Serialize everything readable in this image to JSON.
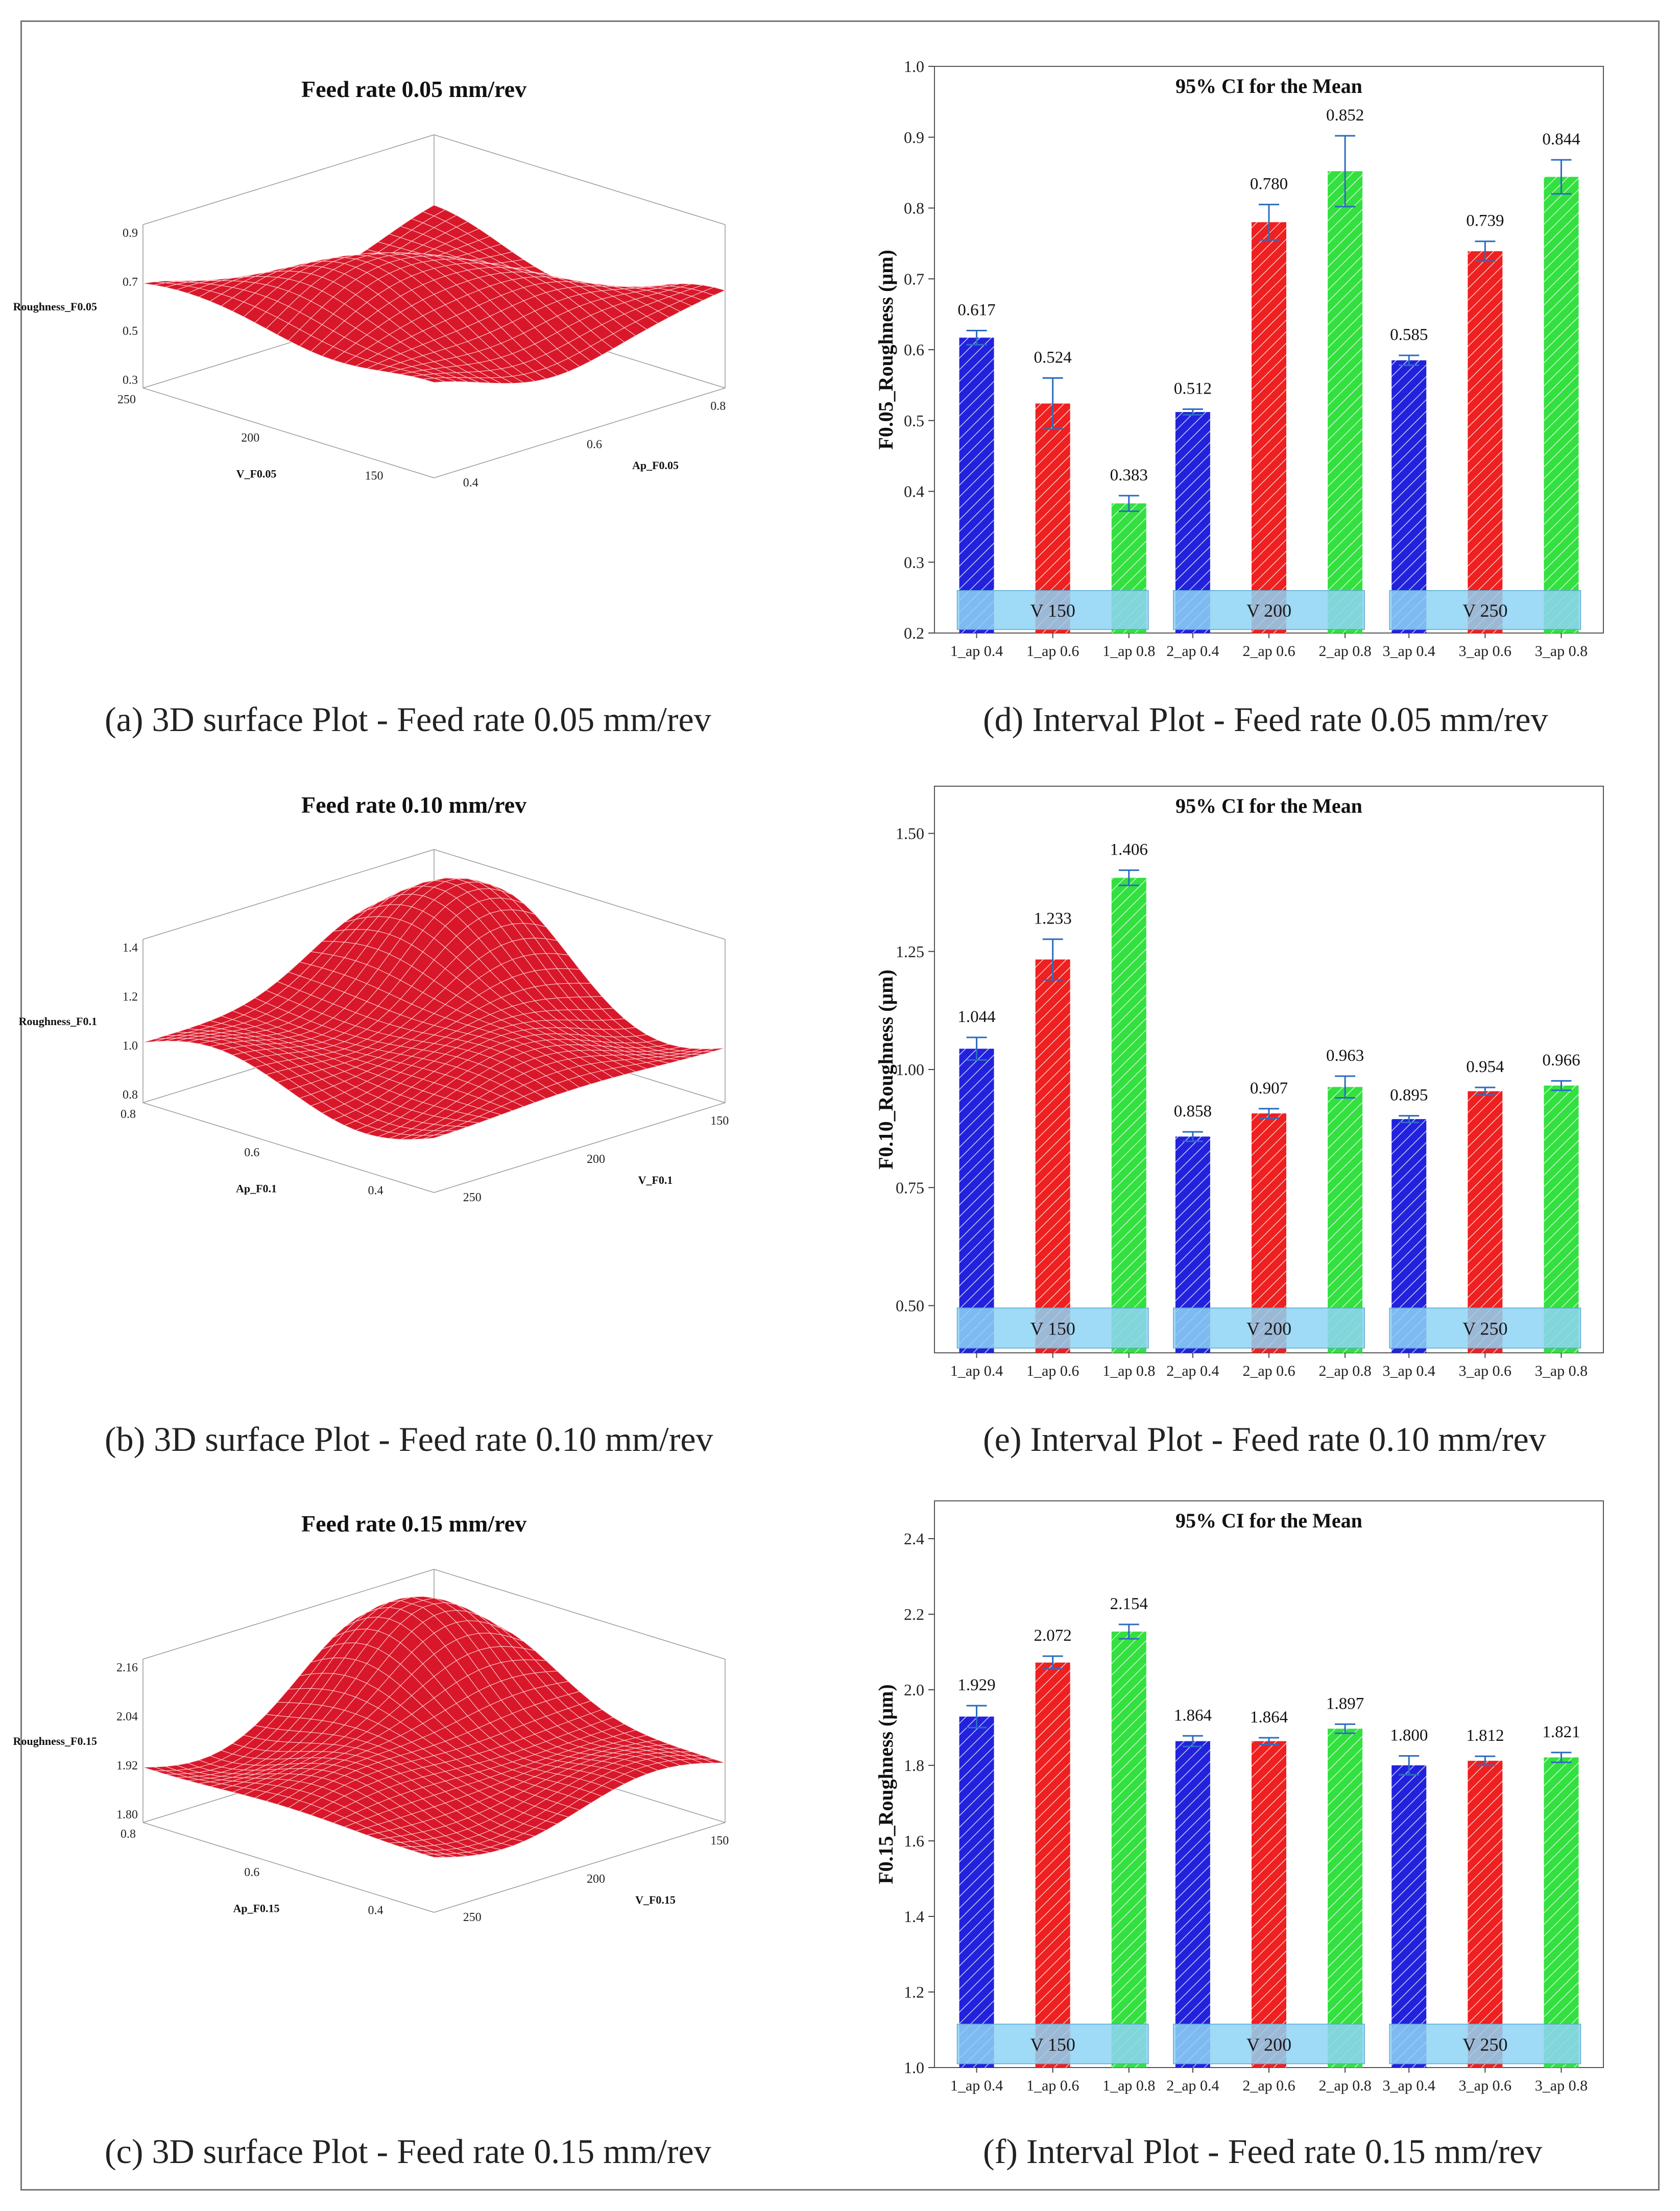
{
  "surface_panels": [
    {
      "title": "Feed rate 0.05 mm/rev",
      "caption": "(a) 3D surface Plot - Feed rate 0.05 mm/rev",
      "z_label": "Roughness_F0.05",
      "z_ticks": [
        "0.9",
        "0.7",
        "0.5",
        "0.3"
      ],
      "left_axis_label": "V_F0.05",
      "left_ticks": [
        "250",
        "200",
        "150"
      ],
      "right_axis_label": "Ap_F0.05",
      "right_ticks": [
        "0.4",
        "0.6",
        "0.8"
      ]
    },
    {
      "title": "Feed rate 0.10 mm/rev",
      "caption": "(b) 3D surface Plot - Feed rate 0.10 mm/rev",
      "z_label": "Roughness_F0.1",
      "z_ticks": [
        "1.4",
        "1.2",
        "1.0",
        "0.8"
      ],
      "left_axis_label": "Ap_F0.1",
      "left_ticks": [
        "0.8",
        "0.6",
        "0.4"
      ],
      "right_axis_label": "V_F0.1",
      "right_ticks": [
        "250",
        "200",
        "150"
      ]
    },
    {
      "title": "Feed rate 0.15 mm/rev",
      "caption": "(c) 3D surface Plot - Feed rate 0.15 mm/rev",
      "z_label": "Roughness_F0.15",
      "z_ticks": [
        "2.16",
        "2.04",
        "1.92",
        "1.80"
      ],
      "left_axis_label": "Ap_F0.15",
      "left_ticks": [
        "0.8",
        "0.6",
        "0.4"
      ],
      "right_axis_label": "V_F0.15",
      "right_ticks": [
        "250",
        "200",
        "150"
      ]
    }
  ],
  "chart_data": [
    {
      "type": "bar",
      "title": "95% CI for the Mean",
      "caption": "(d) Interval Plot - Feed rate 0.05 mm/rev",
      "ylabel": "F0.05_Roughness (μm)",
      "ylim": [
        0.2,
        1.0
      ],
      "yticks": [
        "0.2",
        "0.3",
        "0.4",
        "0.5",
        "0.6",
        "0.7",
        "0.8",
        "0.9",
        "1.0"
      ],
      "categories": [
        "1_ap 0.4",
        "1_ap 0.6",
        "1_ap 0.8",
        "2_ap 0.4",
        "2_ap 0.6",
        "2_ap 0.8",
        "3_ap 0.4",
        "3_ap 0.6",
        "3_ap 0.8"
      ],
      "values": [
        0.617,
        0.524,
        0.383,
        0.512,
        0.78,
        0.852,
        0.585,
        0.739,
        0.844
      ],
      "labels": [
        "0.617",
        "0.524",
        "0.383",
        "0.512",
        "0.780",
        "0.852",
        "0.585",
        "0.739",
        "0.844"
      ],
      "ci_low": [
        0.607,
        0.488,
        0.372,
        0.508,
        0.755,
        0.802,
        0.578,
        0.725,
        0.82
      ],
      "ci_high": [
        0.627,
        0.56,
        0.394,
        0.516,
        0.805,
        0.902,
        0.592,
        0.753,
        0.868
      ],
      "groups": [
        "V 150",
        "V 200",
        "V 250"
      ],
      "group_band": [
        0.205,
        0.26
      ],
      "colors": [
        "#1010cc",
        "#dd1111",
        "#22dd33"
      ],
      "band_color": "#8ed4f5",
      "errorbar_color": "#2b6cc0"
    },
    {
      "type": "bar",
      "title": "95% CI for the Mean",
      "caption": "(e) Interval Plot - Feed rate 0.10 mm/rev",
      "ylabel": "F0.10_Roughness (μm)",
      "ylim": [
        0.4,
        1.6
      ],
      "yticks": [
        "0.50",
        "0.75",
        "1.00",
        "1.25",
        "1.50"
      ],
      "categories": [
        "1_ap 0.4",
        "1_ap 0.6",
        "1_ap 0.8",
        "2_ap 0.4",
        "2_ap 0.6",
        "2_ap 0.8",
        "3_ap 0.4",
        "3_ap 0.6",
        "3_ap 0.8"
      ],
      "values": [
        1.044,
        1.233,
        1.406,
        0.858,
        0.907,
        0.963,
        0.895,
        0.954,
        0.966
      ],
      "labels": [
        "1.044",
        "1.233",
        "1.406",
        "0.858",
        "0.907",
        "0.963",
        "0.895",
        "0.954",
        "0.966"
      ],
      "ci_low": [
        1.02,
        1.19,
        1.39,
        0.848,
        0.897,
        0.94,
        0.888,
        0.946,
        0.956
      ],
      "ci_high": [
        1.068,
        1.276,
        1.422,
        0.868,
        0.917,
        0.986,
        0.902,
        0.962,
        0.976
      ],
      "groups": [
        "V 150",
        "V 200",
        "V 250"
      ],
      "group_band": [
        0.41,
        0.495
      ],
      "colors": [
        "#1010cc",
        "#dd1111",
        "#22dd33"
      ],
      "band_color": "#8ed4f5",
      "errorbar_color": "#2b6cc0"
    },
    {
      "type": "bar",
      "title": "95% CI for the Mean",
      "caption": "(f) Interval Plot - Feed rate 0.15 mm/rev",
      "ylabel": "F0.15_Roughness (μm)",
      "ylim": [
        1.0,
        2.5
      ],
      "yticks": [
        "1.0",
        "1.2",
        "1.4",
        "1.6",
        "1.8",
        "2.0",
        "2.2",
        "2.4"
      ],
      "categories": [
        "1_ap 0.4",
        "1_ap 0.6",
        "1_ap 0.8",
        "2_ap 0.4",
        "2_ap 0.6",
        "2_ap 0.8",
        "3_ap 0.4",
        "3_ap 0.6",
        "3_ap 0.8"
      ],
      "values": [
        1.929,
        2.072,
        2.154,
        1.864,
        1.864,
        1.897,
        1.8,
        1.812,
        1.821
      ],
      "labels": [
        "1.929",
        "2.072",
        "2.154",
        "1.864",
        "1.864",
        "1.897",
        "1.800",
        "1.812",
        "1.821"
      ],
      "ci_low": [
        1.9,
        2.055,
        2.135,
        1.85,
        1.855,
        1.885,
        1.775,
        1.8,
        1.808
      ],
      "ci_high": [
        1.958,
        2.089,
        2.173,
        1.878,
        1.873,
        1.909,
        1.825,
        1.824,
        1.834
      ],
      "groups": [
        "V 150",
        "V 200",
        "V 250"
      ],
      "group_band": [
        1.01,
        1.115
      ],
      "colors": [
        "#1010cc",
        "#dd1111",
        "#22dd33"
      ],
      "band_color": "#8ed4f5",
      "errorbar_color": "#2b6cc0"
    }
  ]
}
